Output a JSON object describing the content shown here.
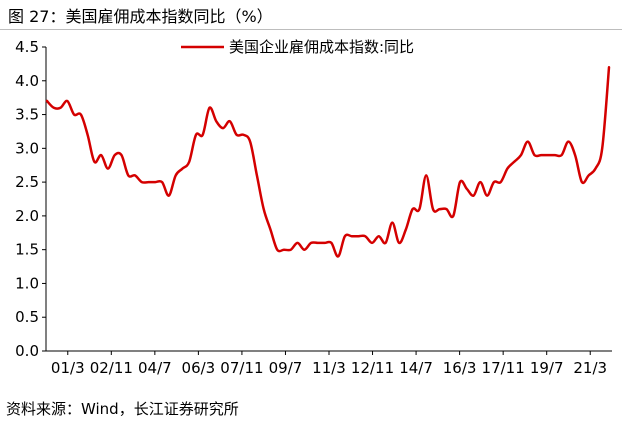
{
  "figure": {
    "title": "图 27：美国雇佣成本指数同比（%）",
    "source": "资料来源：Wind，长江证券研究所"
  },
  "chart_data": {
    "type": "line",
    "title": "",
    "xlabel": "",
    "ylabel": "",
    "legend_position": "top-center",
    "grid": false,
    "ylim": [
      0.0,
      4.5
    ],
    "y_ticks": [
      "0.0",
      "0.5",
      "1.0",
      "1.5",
      "2.0",
      "2.5",
      "3.0",
      "3.5",
      "4.0",
      "4.5"
    ],
    "x_ticks": [
      "01/3",
      "02/11",
      "04/7",
      "06/3",
      "07/11",
      "09/7",
      "11/3",
      "12/11",
      "14/7",
      "16/3",
      "17/11",
      "19/7",
      "21/3"
    ],
    "series": [
      {
        "name": "美国企业雇佣成本指数:同比",
        "color": "#d40000",
        "values": [
          3.7,
          3.6,
          3.6,
          3.7,
          3.5,
          3.5,
          3.2,
          2.8,
          2.9,
          2.7,
          2.9,
          2.9,
          2.6,
          2.6,
          2.5,
          2.5,
          2.5,
          2.5,
          2.3,
          2.6,
          2.7,
          2.8,
          3.2,
          3.2,
          3.6,
          3.4,
          3.3,
          3.4,
          3.2,
          3.2,
          3.1,
          2.6,
          2.1,
          1.8,
          1.5,
          1.5,
          1.5,
          1.6,
          1.5,
          1.6,
          1.6,
          1.6,
          1.6,
          1.4,
          1.7,
          1.7,
          1.7,
          1.7,
          1.6,
          1.7,
          1.6,
          1.9,
          1.6,
          1.8,
          2.1,
          2.1,
          2.6,
          2.1,
          2.1,
          2.1,
          2.0,
          2.5,
          2.4,
          2.3,
          2.5,
          2.3,
          2.5,
          2.5,
          2.7,
          2.8,
          2.9,
          3.1,
          2.9,
          2.9,
          2.9,
          2.9,
          2.9,
          3.1,
          2.9,
          2.5,
          2.6,
          2.7,
          3.0,
          4.2
        ]
      }
    ]
  }
}
